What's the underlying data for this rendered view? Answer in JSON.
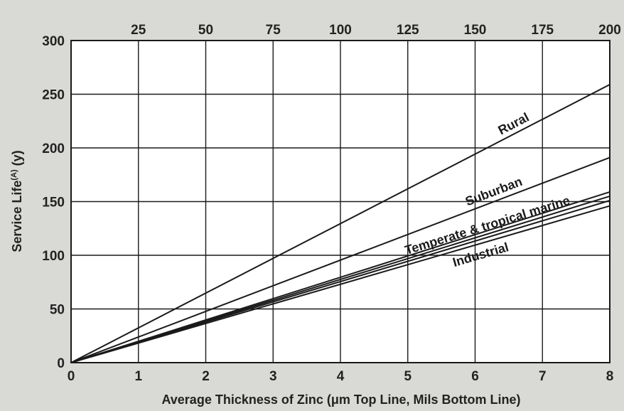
{
  "chart_data": {
    "type": "line",
    "title": "",
    "xlabel": "Average Thickness of Zinc (μm Top Line, Mils Bottom Line)",
    "ylabel": "Service Life",
    "ylabel_superscript": "(A)",
    "ylabel_unit": " (y)",
    "xlim": [
      0,
      8
    ],
    "ylim": [
      0,
      300
    ],
    "x_ticks_bottom": [
      0,
      1,
      2,
      3,
      4,
      5,
      6,
      7,
      8
    ],
    "x_ticks_top": [
      25,
      50,
      75,
      100,
      125,
      150,
      175,
      200
    ],
    "y_ticks": [
      0,
      50,
      100,
      150,
      200,
      250,
      300
    ],
    "grid": true,
    "series": [
      {
        "name": "Rural",
        "x": [
          0,
          8
        ],
        "y": [
          0,
          259
        ]
      },
      {
        "name": "Suburban",
        "x": [
          0,
          8
        ],
        "y": [
          0,
          191
        ]
      },
      {
        "name": "",
        "x": [
          0,
          8
        ],
        "y": [
          0,
          159
        ]
      },
      {
        "name": "Temperate & tropical marine",
        "x": [
          0,
          8
        ],
        "y": [
          0,
          155
        ]
      },
      {
        "name": "",
        "x": [
          0,
          8
        ],
        "y": [
          0,
          151
        ]
      },
      {
        "name": "Industrial",
        "x": [
          0,
          8
        ],
        "y": [
          0,
          146
        ]
      }
    ]
  }
}
